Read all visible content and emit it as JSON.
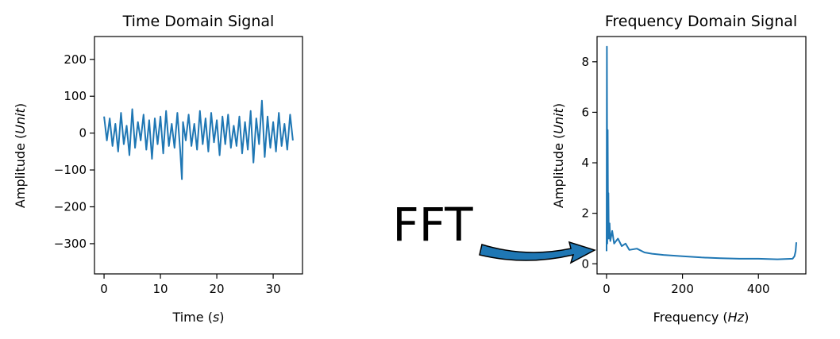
{
  "chart_data": [
    {
      "type": "line",
      "title": "Time Domain Signal",
      "xlabel": "Time",
      "xlabel_unit": "s",
      "ylabel": "Amplitude",
      "ylabel_unit": "Unit",
      "xlim": [
        -1.7,
        35.2
      ],
      "ylim": [
        -382,
        262
      ],
      "xticks": [
        0,
        10,
        20,
        30
      ],
      "yticks": [
        200,
        100,
        0,
        -100,
        -200,
        -300
      ],
      "xtick_labels": [
        "0",
        "10",
        "20",
        "30"
      ],
      "ytick_labels": [
        "200",
        "100",
        "0",
        "−100",
        "−200",
        "−300"
      ],
      "grid": false,
      "color": "#1f77b4",
      "x": [
        0,
        0.5,
        1,
        1.5,
        2,
        2.5,
        3,
        3.5,
        4,
        4.5,
        5,
        5.5,
        6,
        6.5,
        7,
        7.5,
        8,
        8.5,
        9,
        9.5,
        10,
        10.5,
        11,
        11.5,
        12,
        12.5,
        13,
        13.5,
        13.8,
        14,
        14.5,
        15,
        15.5,
        16,
        16.5,
        17,
        17.5,
        18,
        18.5,
        19,
        19.5,
        20,
        20.5,
        21,
        21.5,
        22,
        22.5,
        23,
        23.5,
        24,
        24.5,
        25,
        25.5,
        26,
        26.5,
        27,
        27.5,
        28,
        28.5,
        29,
        29.5,
        30,
        30.5,
        31,
        31.5,
        32,
        32.5,
        33,
        33.5
      ],
      "y": [
        45,
        -20,
        40,
        -35,
        25,
        -50,
        55,
        -30,
        20,
        -60,
        65,
        -40,
        30,
        -20,
        50,
        -45,
        35,
        -70,
        40,
        -30,
        45,
        -55,
        60,
        -35,
        25,
        -40,
        55,
        -45,
        -125,
        30,
        -20,
        50,
        -35,
        25,
        -45,
        60,
        -30,
        40,
        -50,
        55,
        -25,
        35,
        -60,
        45,
        -30,
        50,
        -40,
        20,
        -35,
        45,
        -55,
        30,
        -45,
        60,
        -80,
        40,
        -30,
        88,
        -65,
        45,
        -40,
        30,
        -50,
        55,
        -35,
        25,
        -45,
        50,
        -20
      ]
    },
    {
      "type": "line",
      "title": "Frequency Domain Signal",
      "xlabel": "Frequency",
      "xlabel_unit": "Hz",
      "ylabel": "Amplitude",
      "ylabel_unit": "Unit",
      "xlim": [
        -25,
        525
      ],
      "ylim": [
        -0.4,
        9.0
      ],
      "xticks": [
        0,
        200,
        400
      ],
      "yticks": [
        0,
        2,
        4,
        6,
        8
      ],
      "xtick_labels": [
        "0",
        "200",
        "400"
      ],
      "ytick_labels": [
        "0",
        "2",
        "4",
        "6",
        "8"
      ],
      "grid": false,
      "color": "#1f77b4",
      "x": [
        0,
        1,
        2,
        3,
        4,
        5,
        6,
        8,
        10,
        15,
        20,
        30,
        40,
        50,
        60,
        80,
        100,
        120,
        150,
        200,
        250,
        300,
        350,
        400,
        450,
        490,
        495,
        498,
        500
      ],
      "y": [
        0.5,
        8.6,
        0.8,
        5.3,
        1.2,
        2.8,
        1.0,
        1.6,
        0.9,
        1.3,
        0.8,
        1.0,
        0.7,
        0.8,
        0.55,
        0.6,
        0.45,
        0.4,
        0.35,
        0.3,
        0.25,
        0.22,
        0.2,
        0.2,
        0.18,
        0.2,
        0.3,
        0.5,
        0.85
      ]
    }
  ],
  "annotation": {
    "label": "FFT",
    "color": "#1f77b4"
  }
}
